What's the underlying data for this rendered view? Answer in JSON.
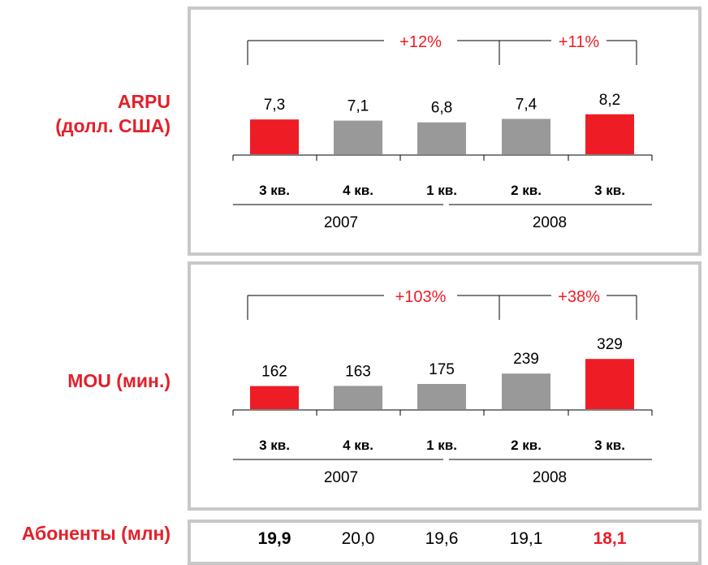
{
  "row_labels": {
    "arpu_line1": "ARPU",
    "arpu_line2": "(долл. США)",
    "mou": "MOU (мин.)",
    "subscribers": "Абоненты (млн)"
  },
  "colors": {
    "highlight": "#ee1c25",
    "neutral": "#999999",
    "axis": "#000000",
    "frame": "#c8c8c8"
  },
  "chart_data": [
    {
      "type": "bar",
      "name": "arpu",
      "categories": [
        "3 кв.",
        "4 кв.",
        "1 кв.",
        "2 кв.",
        "3 кв."
      ],
      "values": [
        7.3,
        7.1,
        6.8,
        7.4,
        8.2
      ],
      "value_labels": [
        "7,3",
        "7,1",
        "6,8",
        "7,4",
        "8,2"
      ],
      "highlight": [
        true,
        false,
        false,
        false,
        true
      ],
      "years": [
        {
          "label": "2007",
          "span": [
            0,
            1
          ]
        },
        {
          "label": "2008",
          "span": [
            2,
            4
          ]
        }
      ],
      "growth": [
        {
          "label": "+12%",
          "from": 0,
          "to": 4
        },
        {
          "label": "+11%",
          "from": 3,
          "to": 4
        }
      ]
    },
    {
      "type": "bar",
      "name": "mou",
      "categories": [
        "3 кв.",
        "4 кв.",
        "1 кв.",
        "2 кв.",
        "3 кв."
      ],
      "values": [
        162,
        163,
        175,
        239,
        329
      ],
      "value_labels": [
        "162",
        "163",
        "175",
        "239",
        "329"
      ],
      "highlight": [
        true,
        false,
        false,
        false,
        true
      ],
      "years": [
        {
          "label": "2007",
          "span": [
            0,
            1
          ]
        },
        {
          "label": "2008",
          "span": [
            2,
            4
          ]
        }
      ],
      "growth": [
        {
          "label": "+103%",
          "from": 0,
          "to": 4
        },
        {
          "label": "+38%",
          "from": 3,
          "to": 4
        }
      ]
    }
  ],
  "subscribers": {
    "values": [
      "19,9",
      "20,0",
      "19,6",
      "19,1",
      "18,1"
    ],
    "bold": [
      true,
      false,
      false,
      false,
      true
    ],
    "red": [
      false,
      false,
      false,
      false,
      true
    ]
  }
}
